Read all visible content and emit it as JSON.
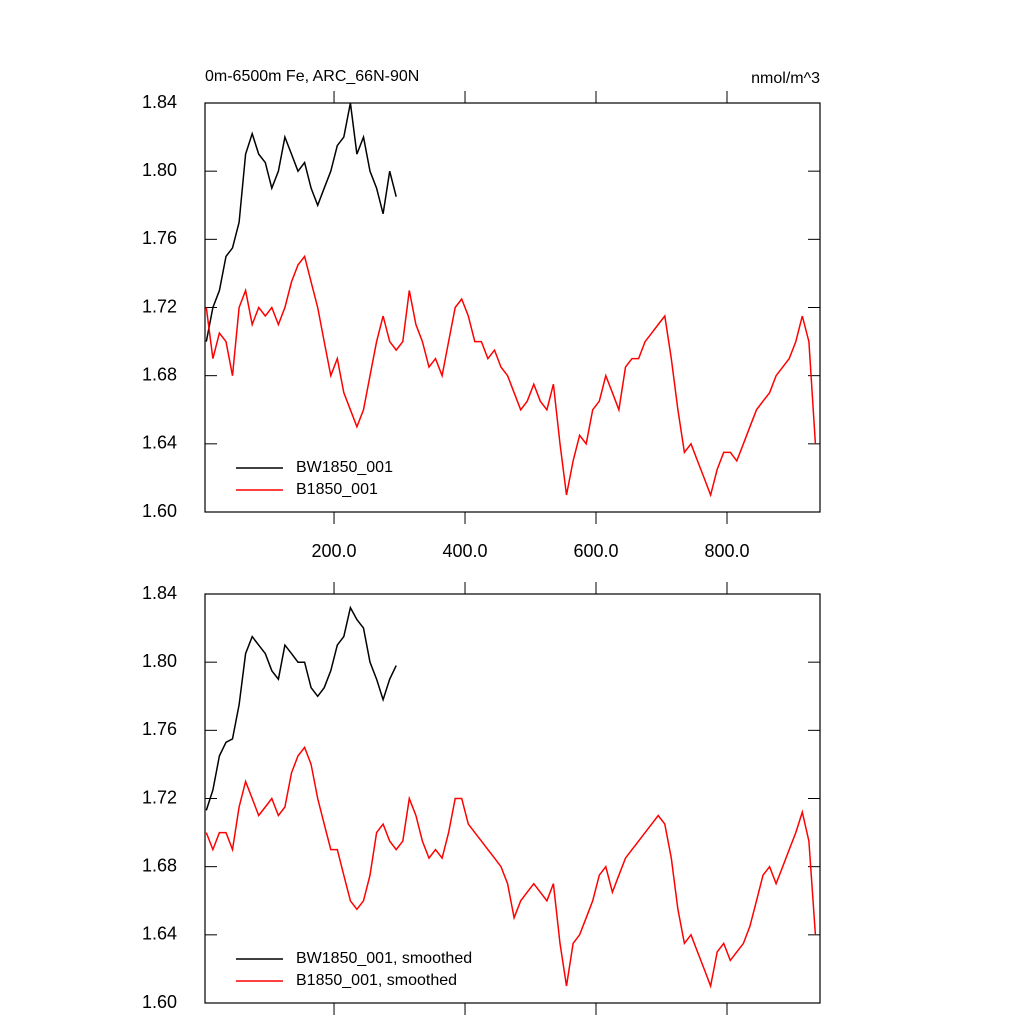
{
  "chart_data": [
    {
      "type": "line",
      "title": "0m-6500m Fe, ARC_66N-90N",
      "units": "nmol/m^3",
      "legend": "lower left",
      "xlim": [
        3,
        942
      ],
      "xticks": [
        {
          "value": 200,
          "label": "200.0"
        },
        {
          "value": 400,
          "label": "400.0"
        },
        {
          "value": 600,
          "label": "600.0"
        },
        {
          "value": 800,
          "label": "800.0"
        }
      ],
      "ylim": [
        1.6,
        1.84
      ],
      "yticks": [
        {
          "value": 1.6,
          "label": "1.60"
        },
        1.64,
        1.68,
        1.72,
        1.76,
        {
          "value": 1.8,
          "label": "1.80"
        },
        1.84
      ],
      "x": [
        5,
        15,
        25,
        35,
        45,
        55,
        65,
        75,
        85,
        95,
        105,
        115,
        125,
        135,
        145,
        155,
        165,
        175,
        185,
        195,
        205,
        215,
        225,
        235,
        245,
        255,
        265,
        275,
        285,
        295,
        305,
        315,
        325,
        335,
        345,
        355,
        365,
        375,
        385,
        395,
        405,
        415,
        425,
        435,
        445,
        455,
        465,
        475,
        485,
        495,
        505,
        515,
        525,
        535,
        545,
        555,
        565,
        575,
        585,
        595,
        605,
        615,
        625,
        635,
        645,
        655,
        665,
        675,
        685,
        695,
        705,
        715,
        725,
        735,
        745,
        755,
        765,
        775,
        785,
        795,
        805,
        815,
        825,
        835,
        845,
        855,
        865,
        875,
        885,
        895,
        905,
        915,
        925,
        935
      ],
      "series": [
        {
          "name": "BW1850_001",
          "color": "#000000",
          "values": [
            1.7,
            1.72,
            1.73,
            1.75,
            1.755,
            1.77,
            1.81,
            1.822,
            1.81,
            1.805,
            1.79,
            1.8,
            1.82,
            1.81,
            1.8,
            1.805,
            1.79,
            1.78,
            1.79,
            1.8,
            1.815,
            1.82,
            1.84,
            1.81,
            1.82,
            1.8,
            1.79,
            1.775,
            1.8,
            1.785,
            null,
            null,
            null,
            null,
            null,
            null,
            null,
            null,
            null,
            null,
            null,
            null,
            null,
            null,
            null,
            null,
            null,
            null,
            null,
            null,
            null,
            null,
            null,
            null,
            null,
            null,
            null,
            null,
            null,
            null,
            null,
            null,
            null,
            null,
            null,
            null,
            null,
            null,
            null,
            null,
            null,
            null,
            null,
            null,
            null,
            null,
            null,
            null,
            null,
            null,
            null,
            null,
            null,
            null,
            null,
            null,
            null,
            null,
            null,
            null,
            null,
            null,
            null,
            null
          ]
        },
        {
          "name": "B1850_001",
          "color": "#ff0000",
          "values": [
            1.72,
            1.69,
            1.705,
            1.7,
            1.68,
            1.72,
            1.73,
            1.71,
            1.72,
            1.715,
            1.72,
            1.71,
            1.72,
            1.735,
            1.745,
            1.75,
            1.735,
            1.72,
            1.7,
            1.68,
            1.69,
            1.67,
            1.66,
            1.65,
            1.66,
            1.68,
            1.7,
            1.715,
            1.7,
            1.695,
            1.7,
            1.73,
            1.71,
            1.7,
            1.685,
            1.69,
            1.68,
            1.7,
            1.72,
            1.725,
            1.715,
            1.7,
            1.7,
            1.69,
            1.695,
            1.685,
            1.68,
            1.67,
            1.66,
            1.665,
            1.675,
            1.665,
            1.66,
            1.675,
            1.64,
            1.61,
            1.63,
            1.645,
            1.64,
            1.66,
            1.665,
            1.68,
            1.67,
            1.66,
            1.685,
            1.69,
            1.69,
            1.7,
            1.705,
            1.71,
            1.715,
            1.69,
            1.66,
            1.635,
            1.64,
            1.63,
            1.62,
            1.61,
            1.625,
            1.635,
            1.635,
            1.63,
            1.64,
            1.65,
            1.66,
            1.665,
            1.67,
            1.68,
            1.685,
            1.69,
            1.7,
            1.715,
            1.7,
            1.64
          ]
        }
      ]
    },
    {
      "type": "line",
      "legend": "lower left",
      "xlim": [
        3,
        942
      ],
      "xticks": [
        200,
        400,
        600,
        800
      ],
      "ylim": [
        1.6,
        1.84
      ],
      "yticks": [
        {
          "value": 1.6,
          "label": "1.60"
        },
        1.64,
        1.68,
        1.72,
        1.76,
        {
          "value": 1.8,
          "label": "1.80"
        },
        1.84
      ],
      "x": [
        5,
        15,
        25,
        35,
        45,
        55,
        65,
        75,
        85,
        95,
        105,
        115,
        125,
        135,
        145,
        155,
        165,
        175,
        185,
        195,
        205,
        215,
        225,
        235,
        245,
        255,
        265,
        275,
        285,
        295,
        305,
        315,
        325,
        335,
        345,
        355,
        365,
        375,
        385,
        395,
        405,
        415,
        425,
        435,
        445,
        455,
        465,
        475,
        485,
        495,
        505,
        515,
        525,
        535,
        545,
        555,
        565,
        575,
        585,
        595,
        605,
        615,
        625,
        635,
        645,
        655,
        665,
        675,
        685,
        695,
        705,
        715,
        725,
        735,
        745,
        755,
        765,
        775,
        785,
        795,
        805,
        815,
        825,
        835,
        845,
        855,
        865,
        875,
        885,
        895,
        905,
        915,
        925,
        935
      ],
      "series": [
        {
          "name": "BW1850_001, smoothed",
          "color": "#000000",
          "values": [
            1.713,
            1.725,
            1.745,
            1.753,
            1.755,
            1.775,
            1.805,
            1.815,
            1.81,
            1.805,
            1.795,
            1.79,
            1.81,
            1.805,
            1.8,
            1.8,
            1.785,
            1.78,
            1.785,
            1.795,
            1.81,
            1.815,
            1.832,
            1.825,
            1.82,
            1.8,
            1.79,
            1.778,
            1.79,
            1.798,
            null,
            null,
            null,
            null,
            null,
            null,
            null,
            null,
            null,
            null,
            null,
            null,
            null,
            null,
            null,
            null,
            null,
            null,
            null,
            null,
            null,
            null,
            null,
            null,
            null,
            null,
            null,
            null,
            null,
            null,
            null,
            null,
            null,
            null,
            null,
            null,
            null,
            null,
            null,
            null,
            null,
            null,
            null,
            null,
            null,
            null,
            null,
            null,
            null,
            null,
            null,
            null,
            null,
            null,
            null,
            null,
            null,
            null,
            null,
            null,
            null,
            null,
            null,
            null
          ]
        },
        {
          "name": "B1850_001, smoothed",
          "color": "#ff0000",
          "values": [
            1.7,
            1.69,
            1.7,
            1.7,
            1.69,
            1.715,
            1.73,
            1.72,
            1.71,
            1.715,
            1.72,
            1.71,
            1.715,
            1.735,
            1.745,
            1.75,
            1.74,
            1.72,
            1.705,
            1.69,
            1.69,
            1.675,
            1.66,
            1.655,
            1.66,
            1.675,
            1.7,
            1.705,
            1.695,
            1.69,
            1.695,
            1.72,
            1.71,
            1.695,
            1.685,
            1.69,
            1.685,
            1.7,
            1.72,
            1.72,
            1.705,
            1.7,
            1.695,
            1.69,
            1.685,
            1.68,
            1.67,
            1.65,
            1.66,
            1.665,
            1.67,
            1.665,
            1.66,
            1.67,
            1.635,
            1.61,
            1.635,
            1.64,
            1.65,
            1.66,
            1.675,
            1.68,
            1.665,
            1.675,
            1.685,
            1.69,
            1.695,
            1.7,
            1.705,
            1.71,
            1.705,
            1.685,
            1.655,
            1.635,
            1.64,
            1.63,
            1.62,
            1.61,
            1.63,
            1.635,
            1.625,
            1.63,
            1.635,
            1.645,
            1.66,
            1.675,
            1.68,
            1.67,
            1.68,
            1.69,
            1.7,
            1.712,
            1.695,
            1.64
          ]
        }
      ]
    }
  ]
}
